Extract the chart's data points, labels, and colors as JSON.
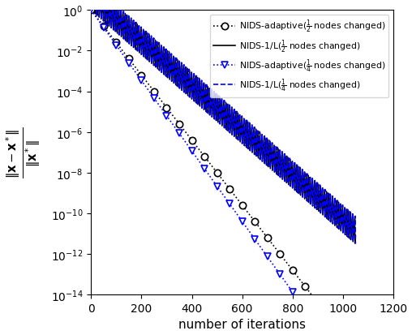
{
  "xlabel": "number of iterations",
  "ylabel_top": "$\\|\\mathbf{x} - \\mathbf{x}^*\\|$",
  "ylabel_bot": "$\\|\\mathbf{x}^*\\|$",
  "xlim": [
    0,
    1200
  ],
  "ylim_log": [
    -14,
    0
  ],
  "xticks": [
    0,
    200,
    400,
    600,
    800,
    1000,
    1200
  ],
  "yticks_exp": [
    0,
    -2,
    -4,
    -6,
    -8,
    -10,
    -12,
    -14
  ],
  "color_black": "#000000",
  "color_blue": "#0000FF",
  "figsize": [
    5.08,
    4.14
  ],
  "dpi": 100,
  "n_total": 1050,
  "rate_adaptive_half": 0.0318,
  "rate_adaptive_quarter": 0.0278,
  "rate_fixed_half": 0.0185,
  "rate_fixed_quarter": 0.0165,
  "osc_period_fixed_half": 8,
  "osc_period_fixed_quarter": 10,
  "osc_amp_fixed": 1.5,
  "marker_every": 50
}
